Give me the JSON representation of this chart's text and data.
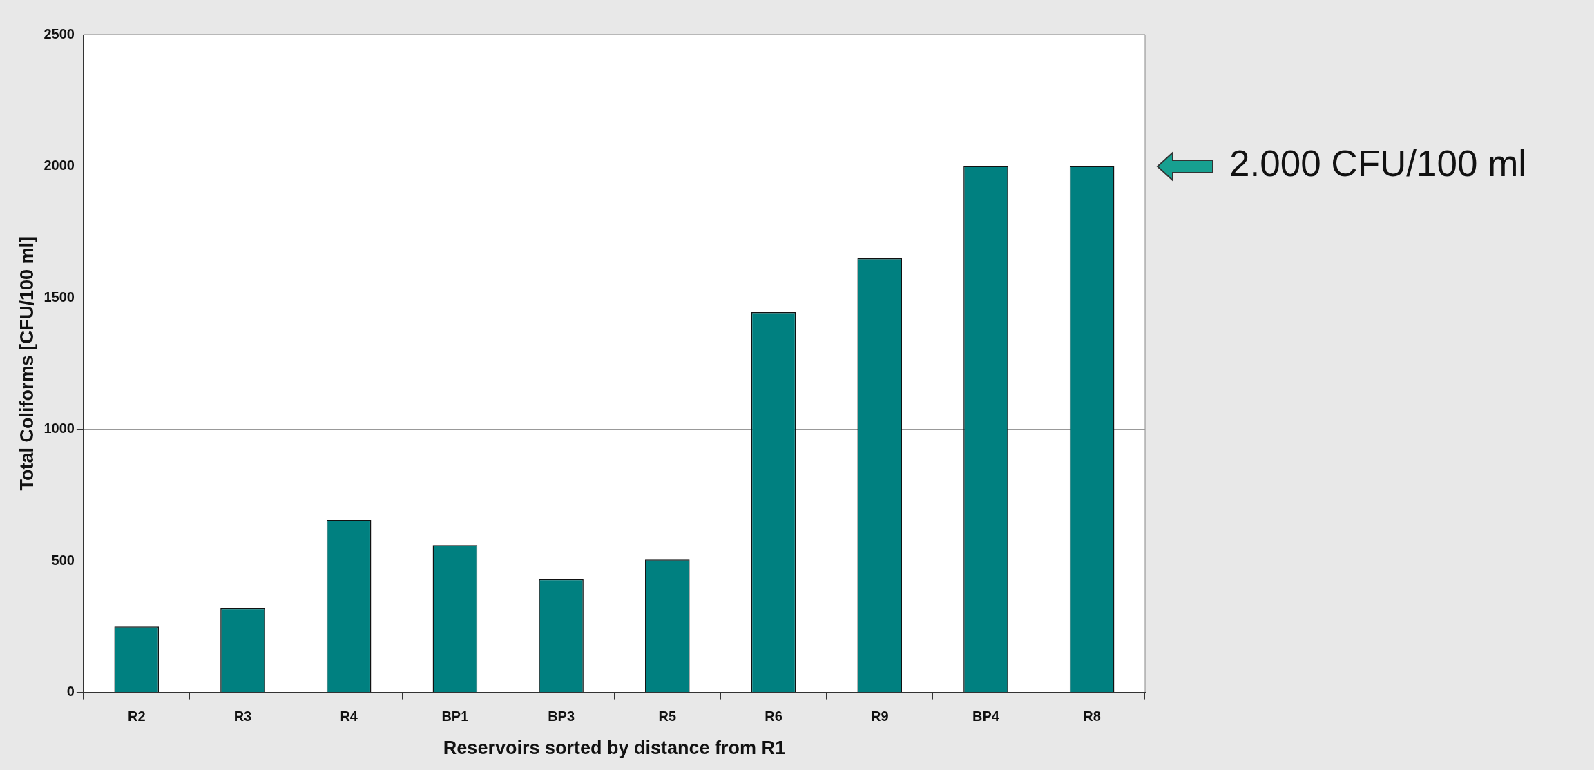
{
  "chart_data": {
    "type": "bar",
    "xlabel": "Reservoirs sorted by distance from R1",
    "ylabel": "Total Coliforms [CFU/100 ml]",
    "categories": [
      "R2",
      "R3",
      "R4",
      "BP1",
      "BP3",
      "R5",
      "R6",
      "R9",
      "BP4",
      "R8"
    ],
    "values": [
      250,
      320,
      655,
      560,
      430,
      505,
      1445,
      1650,
      2000,
      2000
    ],
    "color": "#008080",
    "ylim": [
      0,
      2500
    ],
    "yticks": [
      0,
      500,
      1000,
      1500,
      2000,
      2500
    ],
    "grid": "y",
    "legend": false,
    "annotations": [
      "2.000 CFU/100 ml"
    ]
  }
}
